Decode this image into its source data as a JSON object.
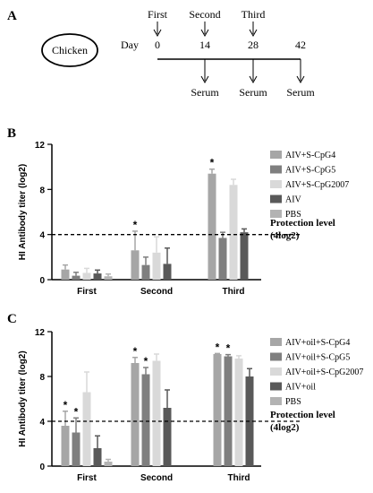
{
  "schedule": {
    "panel": "A",
    "animal": "Chicken",
    "day_label": "Day",
    "days": [
      "0",
      "14",
      "28",
      "42"
    ],
    "doses": [
      "First",
      "Second",
      "Third"
    ],
    "serum": [
      "Serum",
      "Serum",
      "Serum"
    ]
  },
  "chart_data": [
    {
      "panel": "B",
      "type": "bar",
      "ylabel": "HI Antibody titer (log2)",
      "ylim": [
        0,
        12
      ],
      "yticks": [
        "0",
        "4",
        "8",
        "12"
      ],
      "categories": [
        "First",
        "Second",
        "Third"
      ],
      "series": [
        {
          "name": "AIV+S-CpG4",
          "color": "#a6a6a6",
          "values": [
            0.9,
            2.6,
            9.4
          ],
          "errors": [
            0.4,
            1.7,
            0.4
          ]
        },
        {
          "name": "AIV+S-CpG5",
          "color": "#7f7f7f",
          "values": [
            0.35,
            1.3,
            3.7
          ],
          "errors": [
            0.3,
            0.7,
            0.5
          ]
        },
        {
          "name": "AIV+S-CpG2007",
          "color": "#d9d9d9",
          "values": [
            0.6,
            2.4,
            8.4
          ],
          "errors": [
            0.4,
            1.4,
            0.5
          ]
        },
        {
          "name": "AIV",
          "color": "#595959",
          "values": [
            0.55,
            1.4,
            4.2
          ],
          "errors": [
            0.3,
            1.4,
            0.3
          ]
        },
        {
          "name": "PBS",
          "color": "#b3b3b3",
          "values": [
            0.3,
            0,
            0
          ],
          "errors": [
            0.2,
            0,
            0
          ]
        }
      ],
      "asterisks": [
        {
          "series": 0,
          "category": 1,
          "text": "*"
        },
        {
          "series": 0,
          "category": 2,
          "text": "*"
        }
      ],
      "protection_line": 4,
      "protection_label": [
        "Protection level",
        "(4log2)"
      ]
    },
    {
      "panel": "C",
      "type": "bar",
      "ylabel": "HI Antibody titer (log2)",
      "ylim": [
        0,
        12
      ],
      "yticks": [
        "0",
        "4",
        "8",
        "12"
      ],
      "categories": [
        "First",
        "Second",
        "Third"
      ],
      "series": [
        {
          "name": "AIV+oil+S-CpG4",
          "color": "#a6a6a6",
          "values": [
            3.6,
            9.2,
            10.0
          ],
          "errors": [
            1.3,
            0.5,
            0.05
          ]
        },
        {
          "name": "AIV+oil+S-CpG5",
          "color": "#7f7f7f",
          "values": [
            3.0,
            8.2,
            9.8
          ],
          "errors": [
            1.3,
            0.6,
            0.15
          ]
        },
        {
          "name": "AIV+oil+S-CpG2007",
          "color": "#d9d9d9",
          "values": [
            6.6,
            9.4,
            9.6
          ],
          "errors": [
            1.8,
            0.6,
            0.25
          ]
        },
        {
          "name": "AIV+oil",
          "color": "#595959",
          "values": [
            1.6,
            5.2,
            8.0
          ],
          "errors": [
            1.1,
            1.6,
            0.7
          ]
        },
        {
          "name": "PBS",
          "color": "#b3b3b3",
          "values": [
            0.4,
            0,
            0
          ],
          "errors": [
            0.2,
            0,
            0
          ]
        }
      ],
      "asterisks": [
        {
          "series": 0,
          "category": 0,
          "text": "*"
        },
        {
          "series": 1,
          "category": 0,
          "text": "*"
        },
        {
          "series": 0,
          "category": 1,
          "text": "*"
        },
        {
          "series": 1,
          "category": 1,
          "text": "*"
        },
        {
          "series": 0,
          "category": 2,
          "text": "*"
        },
        {
          "series": 1,
          "category": 2,
          "text": "*"
        }
      ],
      "protection_line": 4,
      "protection_label": [
        "Protection level",
        "(4log2)"
      ]
    }
  ]
}
